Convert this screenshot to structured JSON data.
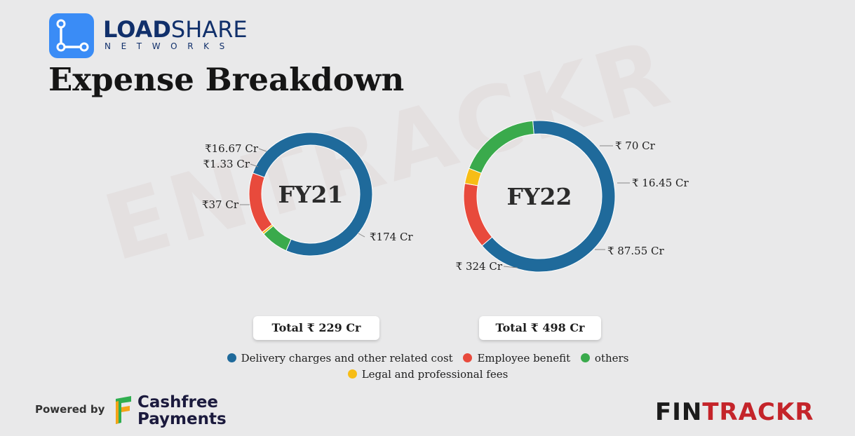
{
  "brand": {
    "name_bold": "LOAD",
    "name_regular": "SHARE",
    "subtitle": "NETWORKS"
  },
  "title": "Expense Breakdown",
  "watermark": "ENTRACKR",
  "colors": {
    "delivery": "#1f6a9b",
    "employee": "#e84a3c",
    "others": "#3aaa4c",
    "legal": "#f7bd16"
  },
  "chart_data": [
    {
      "type": "pie",
      "center_label": "FY21",
      "categories": [
        "Delivery charges and other related cost",
        "others",
        "Legal and professional fees",
        "Employee benefit"
      ],
      "values": [
        174,
        16.67,
        1.33,
        37
      ],
      "labels": [
        "₹174 Cr",
        "₹16.67 Cr",
        "₹1.33 Cr",
        "₹37 Cr"
      ],
      "unit": "Cr",
      "total_label": "Total ₹ 229 Cr"
    },
    {
      "type": "pie",
      "center_label": "FY22",
      "categories": [
        "Delivery charges and other related cost",
        "Employee benefit",
        "Legal and professional fees",
        "others"
      ],
      "values": [
        324,
        70,
        16.45,
        87.55
      ],
      "labels": [
        "₹ 324 Cr",
        "₹ 70 Cr",
        "₹ 16.45 Cr",
        "₹ 87.55 Cr"
      ],
      "unit": "Cr",
      "total_label": "Total ₹ 498 Cr"
    }
  ],
  "legend": [
    {
      "label": "Delivery charges and other related cost",
      "color": "#1f6a9b"
    },
    {
      "label": "Employee benefit",
      "color": "#e84a3c"
    },
    {
      "label": "others",
      "color": "#3aaa4c"
    },
    {
      "label": "Legal and professional fees",
      "color": "#f7bd16"
    }
  ],
  "footer": {
    "powered_by": "Powered by",
    "sponsor_line1": "Cashfree",
    "sponsor_line2": "Payments",
    "publisher_a": "FIN",
    "publisher_b": "TRACKR"
  }
}
